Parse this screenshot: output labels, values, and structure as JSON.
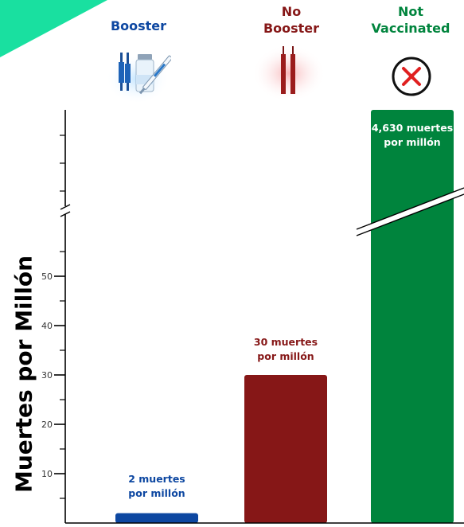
{
  "colors": {
    "booster": "#0d47a1",
    "no_booster": "#861717",
    "not_vaccinated": "#00843d",
    "accent": "#19e0a0"
  },
  "icons": {
    "booster": "syringe-vial-icon",
    "no_booster": "syringe-icon",
    "not_vaccinated": "x-circle-icon"
  },
  "chart_data": {
    "type": "bar",
    "categories": [
      "Booster",
      "No\nBooster",
      "Not\nVaccinated"
    ],
    "values": [
      2,
      30,
      4630
    ],
    "ylabel": "Muertes por Millón",
    "y_axis_break": true,
    "yticks": [
      10,
      20,
      30,
      40,
      50
    ],
    "ylim": [
      0,
      55
    ],
    "data_labels": [
      "2 muertes\npor millón",
      "30 muertes\npor millón",
      "4,630 muertes\npor millón"
    ],
    "grid": false,
    "legend": "none"
  }
}
